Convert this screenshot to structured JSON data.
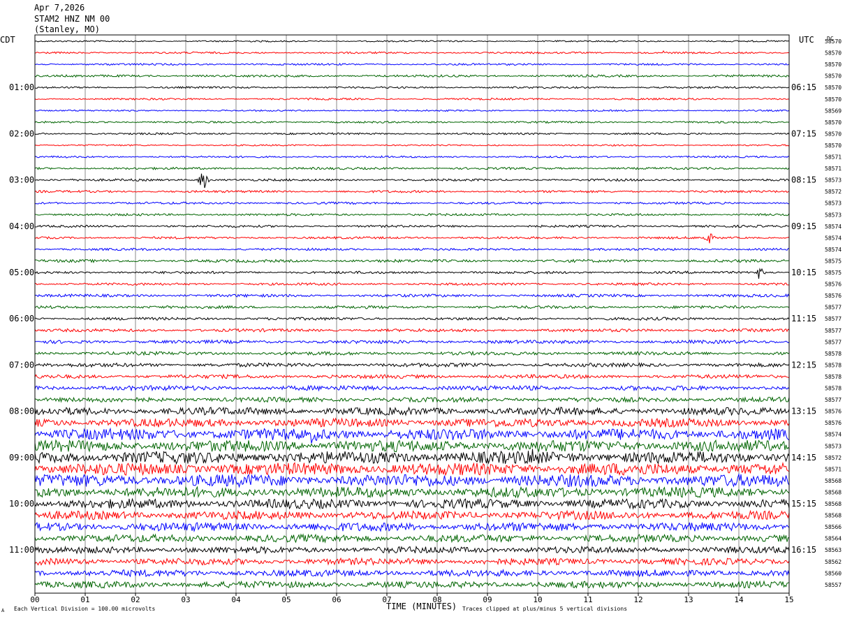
{
  "header": {
    "date": "Apr 7,2026",
    "station": "STAM2 HNZ NM 00",
    "location": "(Stanley, MO)"
  },
  "left_label": "CDT",
  "right_label": "UTC",
  "dc_label": "DC",
  "footer": {
    "scale_note": "Each Vertical Division =  100.00 microvolts",
    "scale_prefix": "A",
    "clip_note": "Traces clipped at plus/minus 5 vertical divisions"
  },
  "chart_data": {
    "type": "line",
    "title": "STAM2 HNZ NM 00 (Stanley, MO)",
    "xlabel": "TIME (MINUTES)",
    "xlim": [
      0,
      15
    ],
    "x_ticks": [
      "00",
      "01",
      "02",
      "03",
      "04",
      "05",
      "06",
      "07",
      "08",
      "09",
      "10",
      "11",
      "12",
      "13",
      "14",
      "15"
    ],
    "line_minutes": 15,
    "trace_colors": [
      "#000000",
      "#ff0000",
      "#0000ff",
      "#006400"
    ],
    "left_time_labels": [
      {
        "row": 4,
        "label": "01:00"
      },
      {
        "row": 8,
        "label": "02:00"
      },
      {
        "row": 12,
        "label": "03:00"
      },
      {
        "row": 16,
        "label": "04:00"
      },
      {
        "row": 20,
        "label": "05:00"
      },
      {
        "row": 24,
        "label": "06:00"
      },
      {
        "row": 28,
        "label": "07:00"
      },
      {
        "row": 32,
        "label": "08:00"
      },
      {
        "row": 36,
        "label": "09:00"
      },
      {
        "row": 40,
        "label": "10:00"
      },
      {
        "row": 44,
        "label": "11:00"
      }
    ],
    "right_time_labels": [
      {
        "row": 4,
        "label": "06:15"
      },
      {
        "row": 8,
        "label": "07:15"
      },
      {
        "row": 12,
        "label": "08:15"
      },
      {
        "row": 16,
        "label": "09:15"
      },
      {
        "row": 20,
        "label": "10:15"
      },
      {
        "row": 24,
        "label": "11:15"
      },
      {
        "row": 28,
        "label": "12:15"
      },
      {
        "row": 32,
        "label": "13:15"
      },
      {
        "row": 36,
        "label": "14:15"
      },
      {
        "row": 40,
        "label": "15:15"
      },
      {
        "row": 44,
        "label": "16:15"
      }
    ],
    "dc_offsets": [
      "58570",
      "58570",
      "58570",
      "58570",
      "58570",
      "58570",
      "58569",
      "58570",
      "58570",
      "58570",
      "58571",
      "58571",
      "58573",
      "58572",
      "58573",
      "58573",
      "58574",
      "58574",
      "58574",
      "58575",
      "58575",
      "58576",
      "58576",
      "58577",
      "58577",
      "58577",
      "58577",
      "58578",
      "58578",
      "58578",
      "58578",
      "58577",
      "58576",
      "58576",
      "58574",
      "58573",
      "58572",
      "58571",
      "58568",
      "58568",
      "58568",
      "58568",
      "58566",
      "58564",
      "58563",
      "58562",
      "58560",
      "58557"
    ],
    "row_noise_amplitude": [
      0.8,
      1.0,
      1.0,
      1.2,
      1.0,
      1.0,
      0.8,
      1.0,
      1.0,
      0.8,
      1.0,
      1.2,
      1.2,
      1.2,
      1.2,
      1.2,
      1.2,
      1.2,
      1.2,
      1.5,
      1.3,
      1.3,
      1.5,
      1.5,
      1.5,
      1.6,
      1.8,
      1.8,
      2.0,
      2.0,
      2.5,
      2.5,
      4.0,
      4.5,
      6.0,
      6.0,
      6.5,
      6.5,
      6.5,
      5.5,
      5.0,
      4.5,
      4.5,
      4.0,
      3.5,
      3.5,
      3.5,
      3.5
    ],
    "events": [
      {
        "row": 12,
        "minute": 3.35,
        "amplitude": 14
      },
      {
        "row": 17,
        "minute": 13.4,
        "amplitude": 10
      },
      {
        "row": 20,
        "minute": 14.4,
        "amplitude": 9
      },
      {
        "row": 1,
        "minute": 12.5,
        "amplitude": 3
      },
      {
        "row": 34,
        "minute": 5.5,
        "amplitude": 10
      },
      {
        "row": 36,
        "minute": 9.9,
        "amplitude": 10
      }
    ]
  }
}
